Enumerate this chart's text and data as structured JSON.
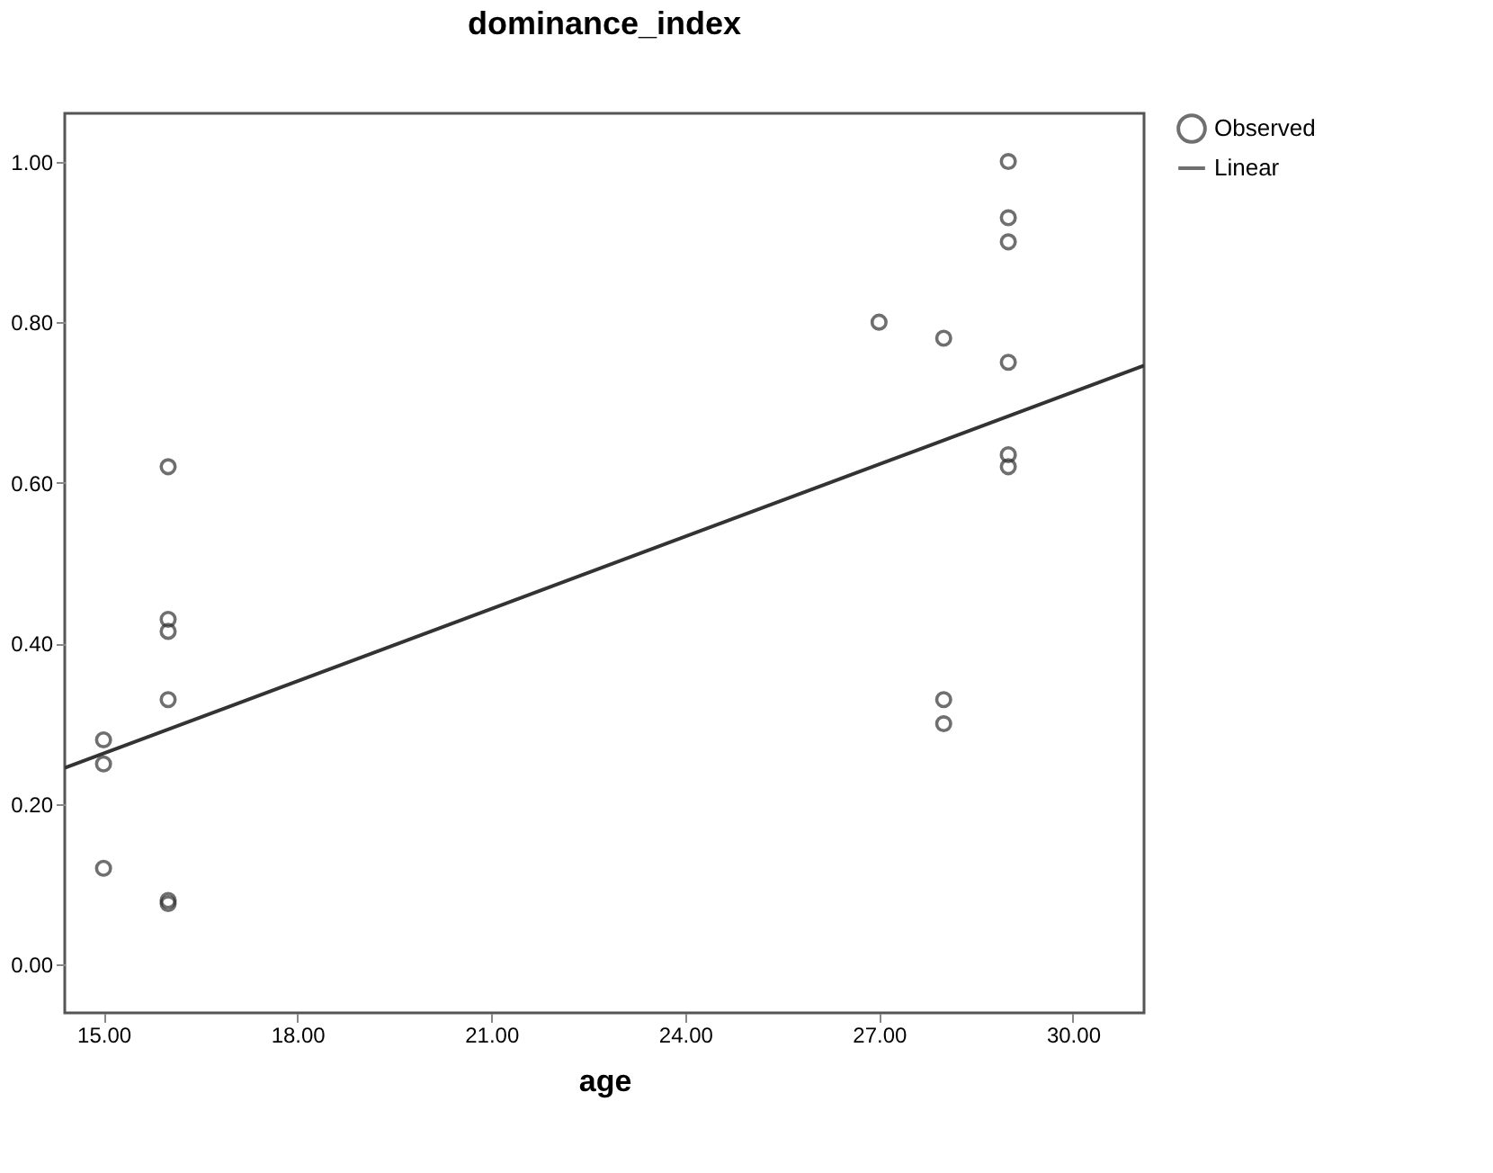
{
  "chart_data": {
    "type": "scatter",
    "title": "dominance_index",
    "xlabel": "age",
    "xlim": [
      14.4,
      31.1
    ],
    "xticks": [
      {
        "value": 15,
        "label": "15.00"
      },
      {
        "value": 18,
        "label": "18.00"
      },
      {
        "value": 21,
        "label": "21.00"
      },
      {
        "value": 24,
        "label": "24.00"
      },
      {
        "value": 27,
        "label": "27.00"
      },
      {
        "value": 30,
        "label": "30.00"
      }
    ],
    "ylim": [
      -0.06,
      1.06
    ],
    "yticks": [
      {
        "value": 0,
        "label": "0.00"
      },
      {
        "value": 0.2,
        "label": "0.20"
      },
      {
        "value": 0.4,
        "label": "0.40"
      },
      {
        "value": 0.6,
        "label": "0.60"
      },
      {
        "value": 0.8,
        "label": "0.80"
      },
      {
        "value": 1.0,
        "label": "1.00"
      }
    ],
    "grid": false,
    "legend": "top right",
    "series": [
      {
        "name": "Observed",
        "marker": "circle",
        "color": "#333333",
        "x": [
          15,
          15,
          15,
          16,
          16,
          16,
          16,
          16,
          16,
          27,
          28,
          28,
          28,
          29,
          29,
          29,
          29,
          29,
          29
        ],
        "values": [
          0.28,
          0.25,
          0.12,
          0.62,
          0.43,
          0.415,
          0.33,
          0.08,
          0.076,
          0.8,
          0.78,
          0.33,
          0.3,
          1.0,
          0.93,
          0.9,
          0.75,
          0.635,
          0.62
        ]
      },
      {
        "name": "Linear",
        "type": "line",
        "line_style": "solid",
        "color": "#333333",
        "x": [
          14.4,
          31.1
        ],
        "values": [
          0.245,
          0.746
        ]
      }
    ]
  }
}
